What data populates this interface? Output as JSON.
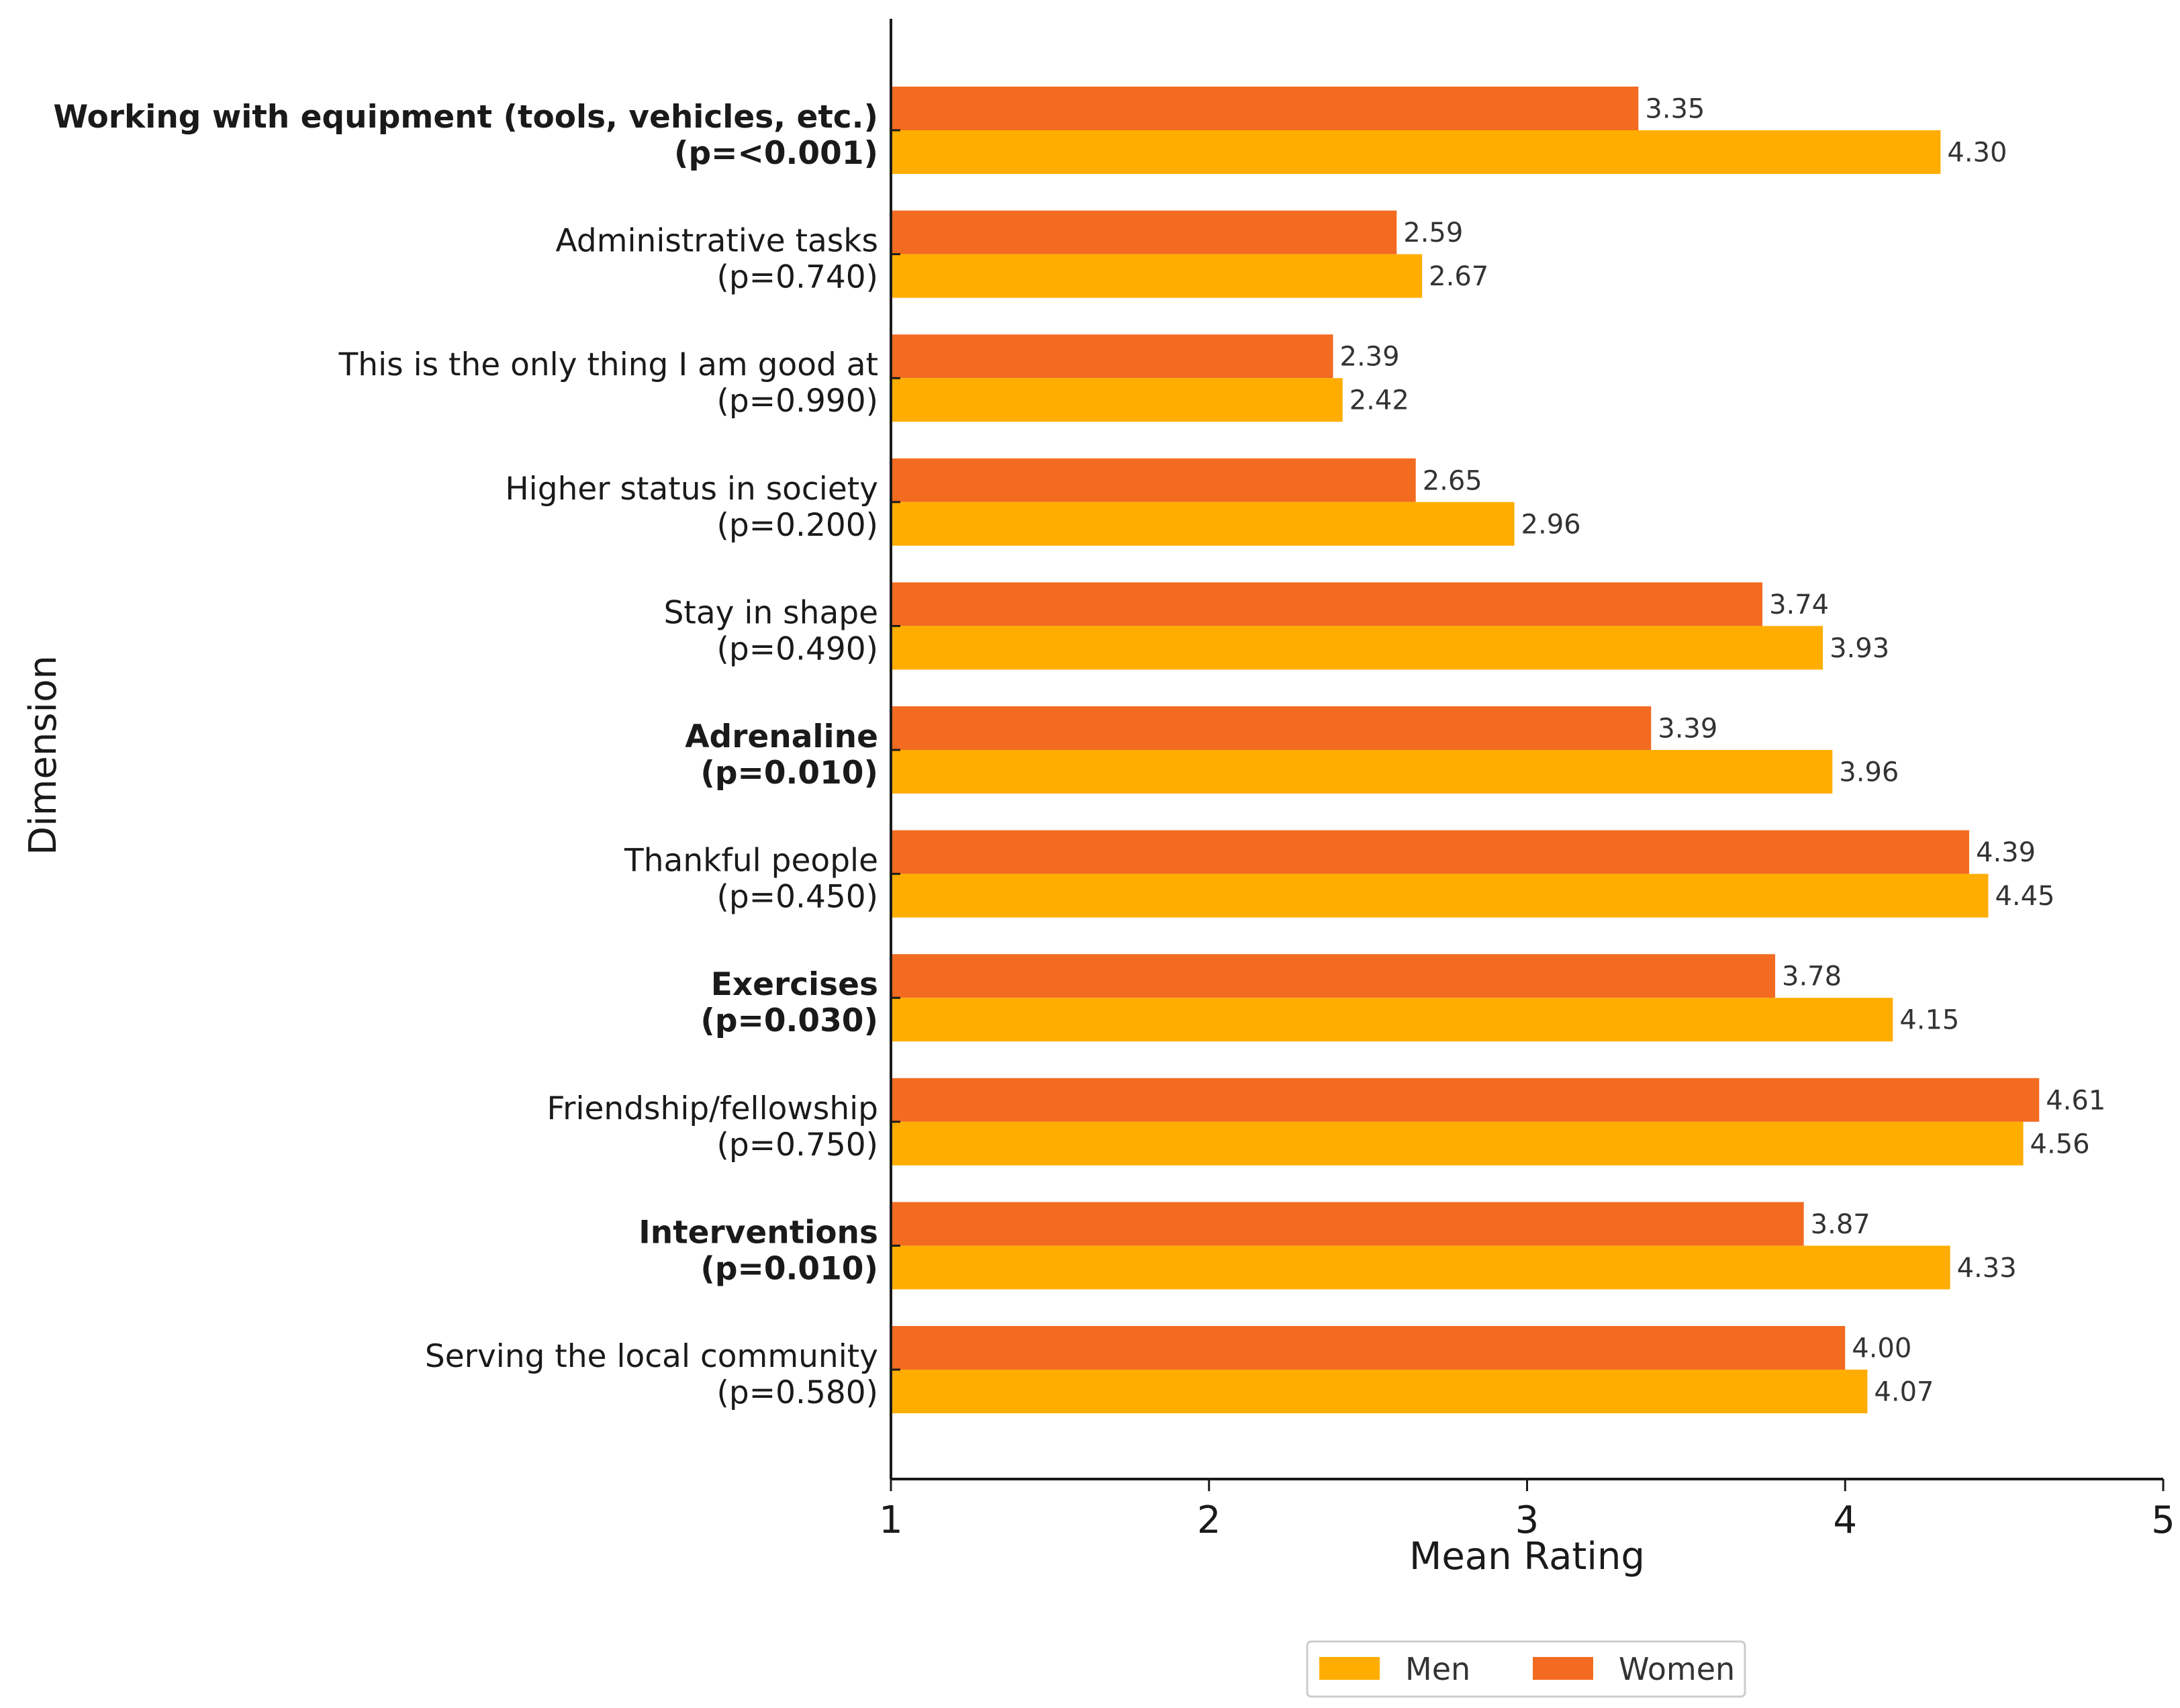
{
  "chart_data": {
    "type": "bar",
    "orientation": "horizontal",
    "categories": [
      "Working with equipment (tools, vehicles, etc.)",
      "Administrative tasks",
      "This is the only thing I am good at",
      "Higher status in society",
      "Stay in shape",
      "Adrenaline",
      "Thankful people",
      "Exercises",
      "Friendship/fellowship",
      "Interventions",
      "Serving the local community"
    ],
    "p_labels": [
      "(p=<0.001)",
      "(p=0.740)",
      "(p=0.990)",
      "(p=0.200)",
      "(p=0.490)",
      "(p=0.010)",
      "(p=0.450)",
      "(p=0.030)",
      "(p=0.750)",
      "(p=0.010)",
      "(p=0.580)"
    ],
    "bold": [
      true,
      false,
      false,
      false,
      false,
      true,
      false,
      true,
      false,
      true,
      false
    ],
    "series": [
      {
        "name": "Women",
        "color": "#F26B21",
        "values": [
          3.35,
          2.59,
          2.39,
          2.65,
          3.74,
          3.39,
          4.39,
          3.78,
          4.61,
          3.87,
          4.0
        ],
        "labels": [
          "3.35",
          "2.59",
          "2.39",
          "2.65",
          "3.74",
          "3.39",
          "4.39",
          "3.78",
          "4.61",
          "3.87",
          "4.00"
        ]
      },
      {
        "name": "Men",
        "color": "#FFAD00",
        "values": [
          4.3,
          2.67,
          2.42,
          2.96,
          3.93,
          3.96,
          4.45,
          4.15,
          4.56,
          4.33,
          4.07
        ],
        "labels": [
          "4.30",
          "2.67",
          "2.42",
          "2.96",
          "3.93",
          "3.96",
          "4.45",
          "4.15",
          "4.56",
          "4.33",
          "4.07"
        ]
      }
    ],
    "xlabel": "Mean Rating",
    "ylabel": "Dimension",
    "xlim": [
      1,
      5
    ],
    "xticks": [
      1,
      2,
      3,
      4,
      5
    ],
    "xtick_labels": [
      "1",
      "2",
      "3",
      "4",
      "5"
    ],
    "legend": {
      "placement": "bottom-center",
      "entries": [
        "Men",
        "Women"
      ]
    },
    "grid": false
  }
}
